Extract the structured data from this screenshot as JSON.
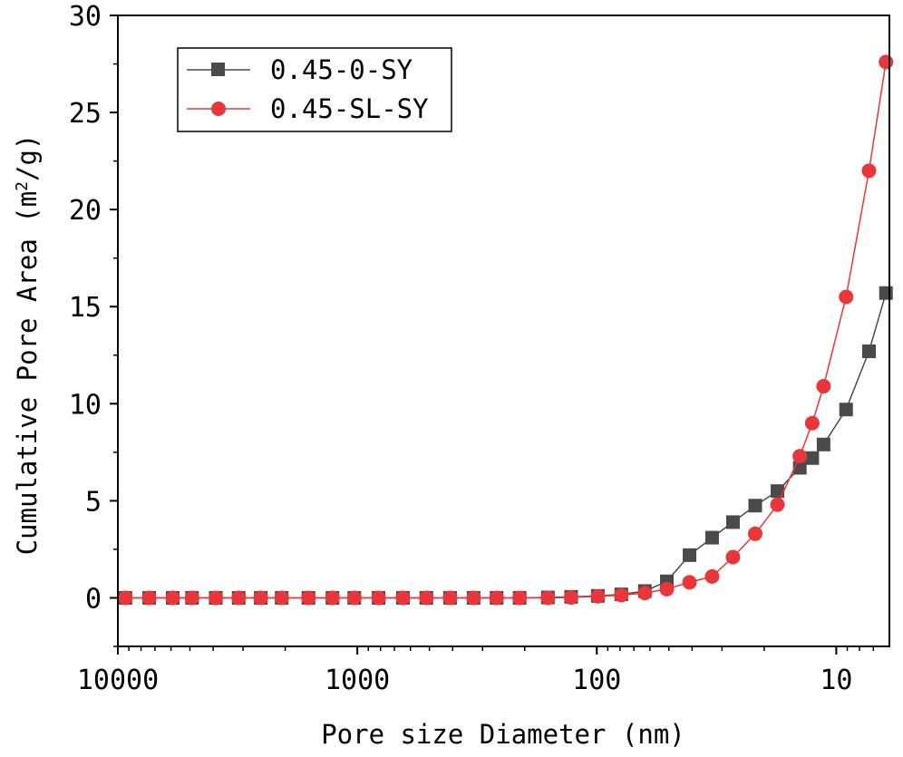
{
  "chart_data": {
    "type": "line",
    "xscale": "log",
    "xreversed": true,
    "xlim": [
      10000,
      6
    ],
    "ylim": [
      -2.5,
      30
    ],
    "xticks": [
      10000,
      1000,
      100,
      10
    ],
    "xtick_labels": [
      "10000",
      "1000",
      "100",
      "10"
    ],
    "yticks": [
      0,
      5,
      10,
      15,
      20,
      25,
      30
    ],
    "ytick_labels": [
      "0",
      "5",
      "10",
      "15",
      "20",
      "25",
      "30"
    ],
    "xlabel": "Pore size Diameter (nm)",
    "ylabel": {
      "prefix": "Cumulative Pore Area (m",
      "sup": "2",
      "suffix": "/g)"
    },
    "legend_position": "top-left",
    "series": [
      {
        "name": "0.45-0-SY",
        "color": "#4a4a4a",
        "marker": "square",
        "x": [
          9300,
          7400,
          5900,
          4900,
          3900,
          3130,
          2530,
          2070,
          1600,
          1270,
          1030,
          815,
          645,
          515,
          410,
          327,
          262,
          210,
          160,
          128,
          99,
          79,
          63,
          51,
          41,
          33,
          27,
          21.8,
          17.6,
          14.2,
          12.6,
          11.3,
          9.1,
          7.3,
          6.2
        ],
        "y": [
          0,
          0,
          0,
          0,
          0,
          0,
          0,
          0,
          0,
          0,
          0,
          0,
          0,
          0,
          0,
          0,
          0,
          0,
          0.02,
          0.05,
          0.1,
          0.18,
          0.35,
          0.85,
          2.2,
          3.1,
          3.9,
          4.75,
          5.5,
          6.7,
          7.2,
          7.9,
          9.7,
          12.7,
          15.7
        ]
      },
      {
        "name": "0.45-SL-SY",
        "color": "#e8363b",
        "marker": "circle",
        "x": [
          9300,
          7400,
          5900,
          4900,
          3900,
          3130,
          2530,
          2070,
          1600,
          1270,
          1030,
          815,
          645,
          515,
          410,
          327,
          262,
          210,
          160,
          128,
          99,
          79,
          63,
          51,
          41,
          33,
          27,
          21.8,
          17.6,
          14.2,
          12.6,
          11.3,
          9.1,
          7.3,
          6.2
        ],
        "y": [
          0,
          0,
          0,
          0,
          0,
          0,
          0,
          0,
          0,
          0,
          0,
          0,
          0,
          0,
          0,
          0,
          0,
          0,
          0,
          0.02,
          0.08,
          0.14,
          0.25,
          0.45,
          0.8,
          1.1,
          2.1,
          3.3,
          4.8,
          7.3,
          9.0,
          10.9,
          15.5,
          22.0,
          27.6
        ]
      }
    ]
  }
}
